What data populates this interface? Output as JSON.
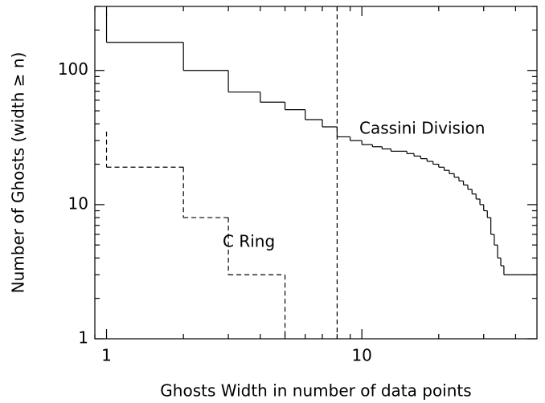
{
  "chart_data": {
    "type": "step",
    "x_label": "Ghosts Width in number of data points",
    "y_label": "Number of Ghosts (width ≥ n)",
    "log_x": true,
    "log_y": true,
    "xlim": [
      0.9,
      48.5
    ],
    "ylim": [
      1,
      300
    ],
    "xticks": [
      1,
      10
    ],
    "yticks": [
      1,
      10,
      100
    ],
    "vline": 8,
    "series": [
      {
        "name": "Cassini Division",
        "color": "#000000",
        "dash": false,
        "x": [
          1,
          1,
          2,
          3,
          4,
          5,
          6,
          7,
          8,
          9,
          10,
          11,
          12,
          13,
          14,
          15,
          16,
          17,
          18,
          19,
          20,
          21,
          22,
          23,
          24,
          25,
          26,
          27,
          28,
          29,
          30,
          31,
          32,
          33,
          34,
          35,
          36,
          48
        ],
        "values": [
          266,
          162,
          100,
          69,
          58,
          51,
          43,
          38,
          32,
          30,
          28,
          27,
          26,
          25,
          25,
          24,
          23,
          22,
          21,
          20,
          19,
          18,
          17,
          16,
          15,
          14,
          13,
          12,
          11,
          10,
          9,
          8,
          6,
          5,
          4,
          3.5,
          3,
          3
        ]
      },
      {
        "name": "C Ring",
        "color": "#000000",
        "dash": true,
        "x": [
          1,
          1,
          2,
          3,
          5
        ],
        "values": [
          35,
          19,
          8,
          3,
          1
        ]
      }
    ]
  }
}
